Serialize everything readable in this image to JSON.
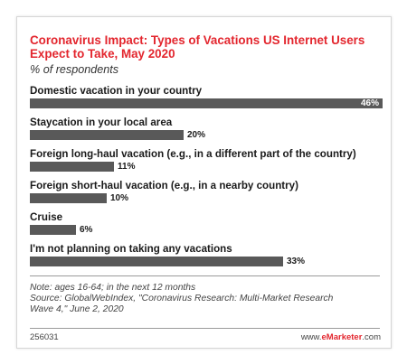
{
  "chart_data": {
    "type": "bar",
    "orientation": "horizontal",
    "title": "Coronavirus Impact: Types of Vacations US Internet Users Expect to Take, May 2020",
    "subtitle": "% of respondents",
    "categories": [
      "Domestic vacation in your country",
      "Staycation in your local area",
      "Foreign long-haul vacation (e.g., in a different part of the country)",
      "Foreign short-haul vacation (e.g., in a nearby country)",
      "Cruise",
      "I'm not planning on taking any vacations"
    ],
    "values": [
      46,
      20,
      11,
      10,
      6,
      33
    ],
    "value_labels": [
      "46%",
      "20%",
      "11%",
      "10%",
      "6%",
      "33%"
    ],
    "xlim": [
      0,
      46
    ],
    "grid": false,
    "legend": "none",
    "bar_color": "#595959"
  },
  "note_lines": [
    "Note: ages 16-64; in the next 12 months",
    "Source: GlobalWebIndex, \"Coronavirus Research: Multi-Market Research",
    "Wave 4,\" June 2, 2020"
  ],
  "footer": {
    "chart_id": "256031",
    "brand_prefix": "www.",
    "brand_name": "eMarketer",
    "brand_suffix": ".com"
  },
  "colors": {
    "title": "#e3262e",
    "bar": "#595959",
    "brand": "#e3262e"
  }
}
